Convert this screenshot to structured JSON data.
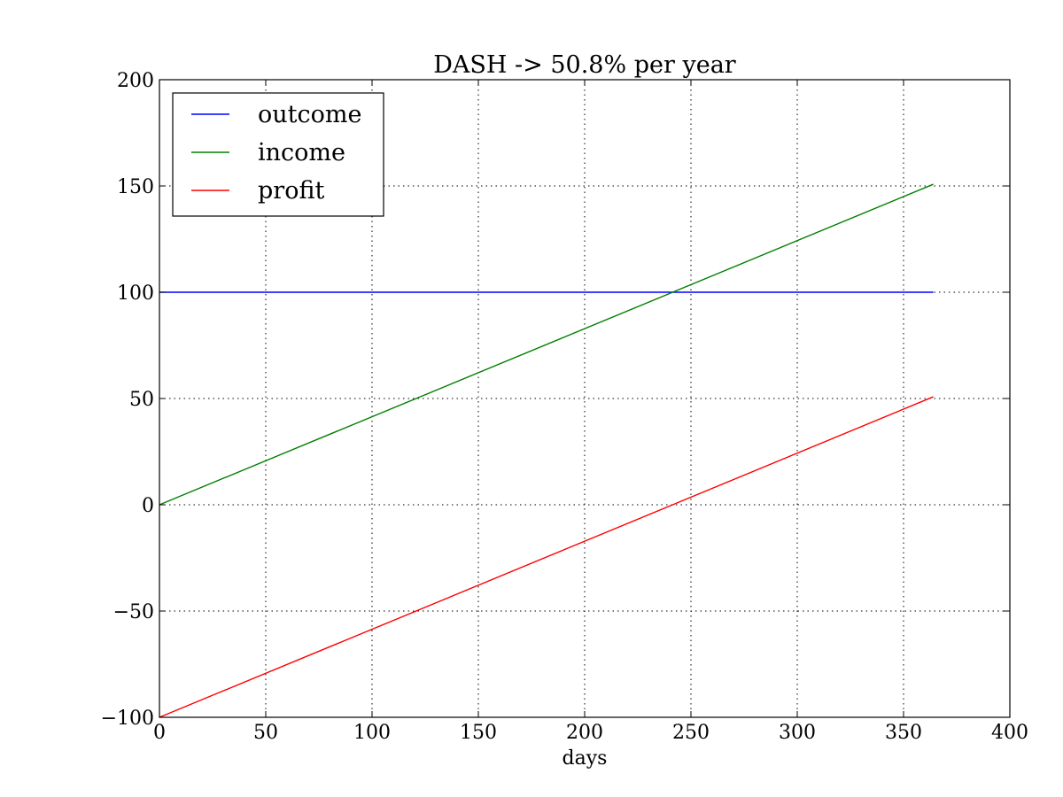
{
  "chart_data": {
    "type": "line",
    "title": "DASH -> 50.8% per year",
    "xlabel": "days",
    "ylabel": "",
    "xlim": [
      0,
      400
    ],
    "ylim": [
      -100,
      200
    ],
    "x_ticks": [
      "0",
      "50",
      "100",
      "150",
      "200",
      "250",
      "300",
      "350",
      "400"
    ],
    "y_ticks": [
      "−100",
      "−50",
      "0",
      "50",
      "100",
      "150",
      "200"
    ],
    "grid": true,
    "legend_position": "top-left",
    "series": [
      {
        "name": "outcome",
        "color": "#0000ff",
        "x": [
          0,
          364
        ],
        "y": [
          100,
          100
        ]
      },
      {
        "name": "income",
        "color": "#008000",
        "x": [
          0,
          364
        ],
        "y": [
          0,
          150.8
        ]
      },
      {
        "name": "profit",
        "color": "#ff0000",
        "x": [
          0,
          364
        ],
        "y": [
          -100,
          50.8
        ]
      }
    ]
  }
}
